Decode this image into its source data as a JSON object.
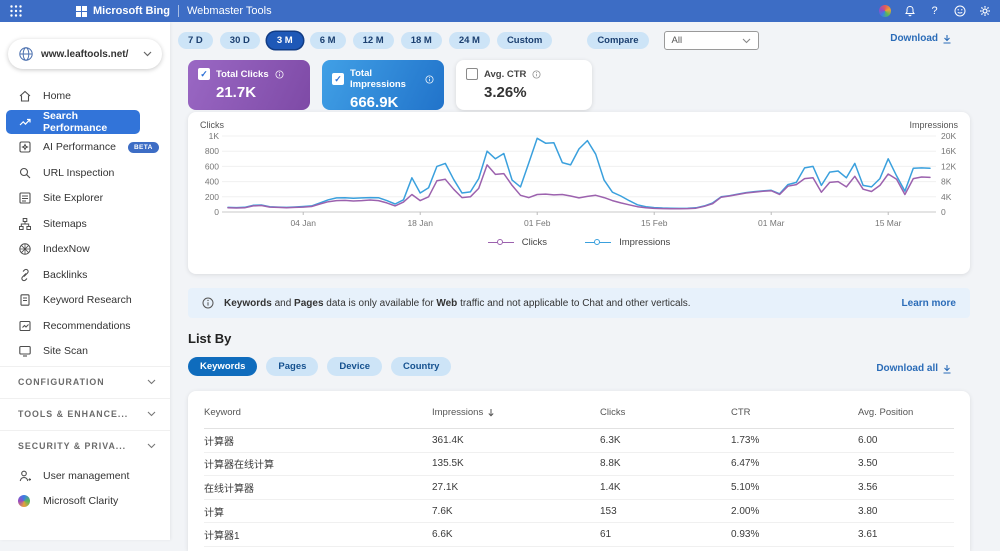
{
  "topbar": {
    "brand": "Microsoft Bing",
    "product": "Webmaster Tools",
    "right_icons": [
      "diversity-icon",
      "notifications-icon",
      "help-icon",
      "feedback-icon",
      "settings-icon"
    ],
    "help_glyph": "?"
  },
  "sidebar": {
    "site": "www.leaftools.net/",
    "items": [
      {
        "label": "Home"
      },
      {
        "label": "Search Performance",
        "active": true
      },
      {
        "label": "AI Performance",
        "badge": "BETA"
      },
      {
        "label": "URL Inspection"
      },
      {
        "label": "Site Explorer"
      },
      {
        "label": "Sitemaps"
      },
      {
        "label": "IndexNow"
      },
      {
        "label": "Backlinks"
      },
      {
        "label": "Keyword Research"
      },
      {
        "label": "Recommendations"
      },
      {
        "label": "Site Scan"
      }
    ],
    "sections": [
      {
        "label": "CONFIGURATION"
      },
      {
        "label": "TOOLS & ENHANCE..."
      },
      {
        "label": "SECURITY & PRIVA..."
      }
    ],
    "footer_items": [
      {
        "label": "User management"
      },
      {
        "label": "Microsoft Clarity"
      }
    ]
  },
  "filters": {
    "ranges": [
      "7 D",
      "30 D",
      "3 M",
      "6 M",
      "12 M",
      "18 M",
      "24 M",
      "Custom"
    ],
    "active_range": "3 M",
    "compare": "Compare",
    "vertical": "All",
    "download": "Download"
  },
  "cards": [
    {
      "title": "Total Clicks",
      "value": "21.7K",
      "checked": true,
      "color": "#8a56b2"
    },
    {
      "title": "Total Impressions",
      "value": "666.9K",
      "checked": true,
      "color": "#2f89d8"
    },
    {
      "title": "Avg. CTR",
      "value": "3.26%",
      "checked": false,
      "color": "#ffffff"
    }
  ],
  "chart_data": {
    "type": "line",
    "title": "Clicks and Impressions over time (3 months)",
    "left_axis": {
      "label": "Clicks",
      "ticks": [
        "0",
        "200",
        "400",
        "600",
        "800",
        "1K"
      ],
      "max": 1000
    },
    "right_axis": {
      "label": "Impressions",
      "ticks": [
        "0",
        "4K",
        "8K",
        "12K",
        "16K",
        "20K"
      ],
      "max": 20000
    },
    "x_tick_labels": [
      "04 Jan",
      "18 Jan",
      "01 Feb",
      "15 Feb",
      "01 Mar",
      "15 Mar"
    ],
    "x_tick_indices": [
      9,
      23,
      37,
      51,
      65,
      79
    ],
    "grid": true,
    "legend_position": "bottom",
    "series": [
      {
        "name": "Clicks",
        "axis": "left",
        "color": "#9c62ae",
        "values": [
          55,
          52,
          55,
          80,
          85,
          65,
          60,
          55,
          60,
          65,
          72,
          105,
          135,
          150,
          152,
          145,
          150,
          158,
          150,
          120,
          80,
          130,
          230,
          150,
          200,
          410,
          430,
          300,
          190,
          200,
          310,
          620,
          495,
          505,
          350,
          220,
          190,
          230,
          235,
          225,
          230,
          210,
          185,
          205,
          220,
          190,
          150,
          120,
          95,
          70,
          55,
          48,
          45,
          44,
          43,
          45,
          50,
          75,
          110,
          195,
          210,
          230,
          250,
          262,
          272,
          280,
          230,
          340,
          360,
          440,
          450,
          260,
          390,
          400,
          330,
          470,
          300,
          270,
          350,
          500,
          430,
          230,
          440,
          460,
          455
        ]
      },
      {
        "name": "Impressions",
        "axis": "right",
        "color": "#3aa0dd",
        "values": [
          1200,
          1160,
          1240,
          1760,
          1840,
          1400,
          1280,
          1200,
          1320,
          1440,
          1600,
          2400,
          3200,
          3700,
          3760,
          3640,
          3700,
          3800,
          3760,
          3000,
          2100,
          3200,
          9000,
          5000,
          6400,
          12000,
          12800,
          8600,
          5000,
          5300,
          8800,
          16000,
          14000,
          15400,
          8400,
          6600,
          13000,
          19400,
          18100,
          18200,
          13000,
          12400,
          16600,
          18800,
          15200,
          8400,
          5200,
          4200,
          3000,
          1900,
          1400,
          1160,
          1040,
          1000,
          960,
          1000,
          1100,
          1600,
          2400,
          4000,
          4300,
          4700,
          5100,
          5360,
          5560,
          5700,
          4800,
          7200,
          7800,
          11600,
          12000,
          7000,
          10500,
          10800,
          9000,
          12800,
          7000,
          6600,
          8800,
          14000,
          9500,
          5500,
          11500,
          11600,
          11500
        ]
      }
    ]
  },
  "banner": {
    "bold1": "Keywords",
    "mid1": " and ",
    "bold2": "Pages",
    "mid2": " data is only available for ",
    "bold3": "Web",
    "rest": " traffic and not applicable to Chat and other verticals.",
    "link": "Learn more"
  },
  "list_by": {
    "title": "List By",
    "tabs": [
      "Keywords",
      "Pages",
      "Device",
      "Country"
    ],
    "active_tab": "Keywords",
    "download_all": "Download all"
  },
  "table": {
    "headers": [
      "Keyword",
      "Impressions",
      "Clicks",
      "CTR",
      "Avg. Position"
    ],
    "sorted_by": "Impressions",
    "rows": [
      {
        "keyword": "计算器",
        "impressions": "361.4K",
        "clicks": "6.3K",
        "ctr": "1.73%",
        "position": "6.00"
      },
      {
        "keyword": "计算器在线计算",
        "impressions": "135.5K",
        "clicks": "8.8K",
        "ctr": "6.47%",
        "position": "3.50"
      },
      {
        "keyword": "在线计算器",
        "impressions": "27.1K",
        "clicks": "1.4K",
        "ctr": "5.10%",
        "position": "3.56"
      },
      {
        "keyword": "计算",
        "impressions": "7.6K",
        "clicks": "153",
        "ctr": "2.00%",
        "position": "3.80"
      },
      {
        "keyword": "计算器1",
        "impressions": "6.6K",
        "clicks": "61",
        "ctr": "0.93%",
        "position": "3.61"
      }
    ]
  }
}
